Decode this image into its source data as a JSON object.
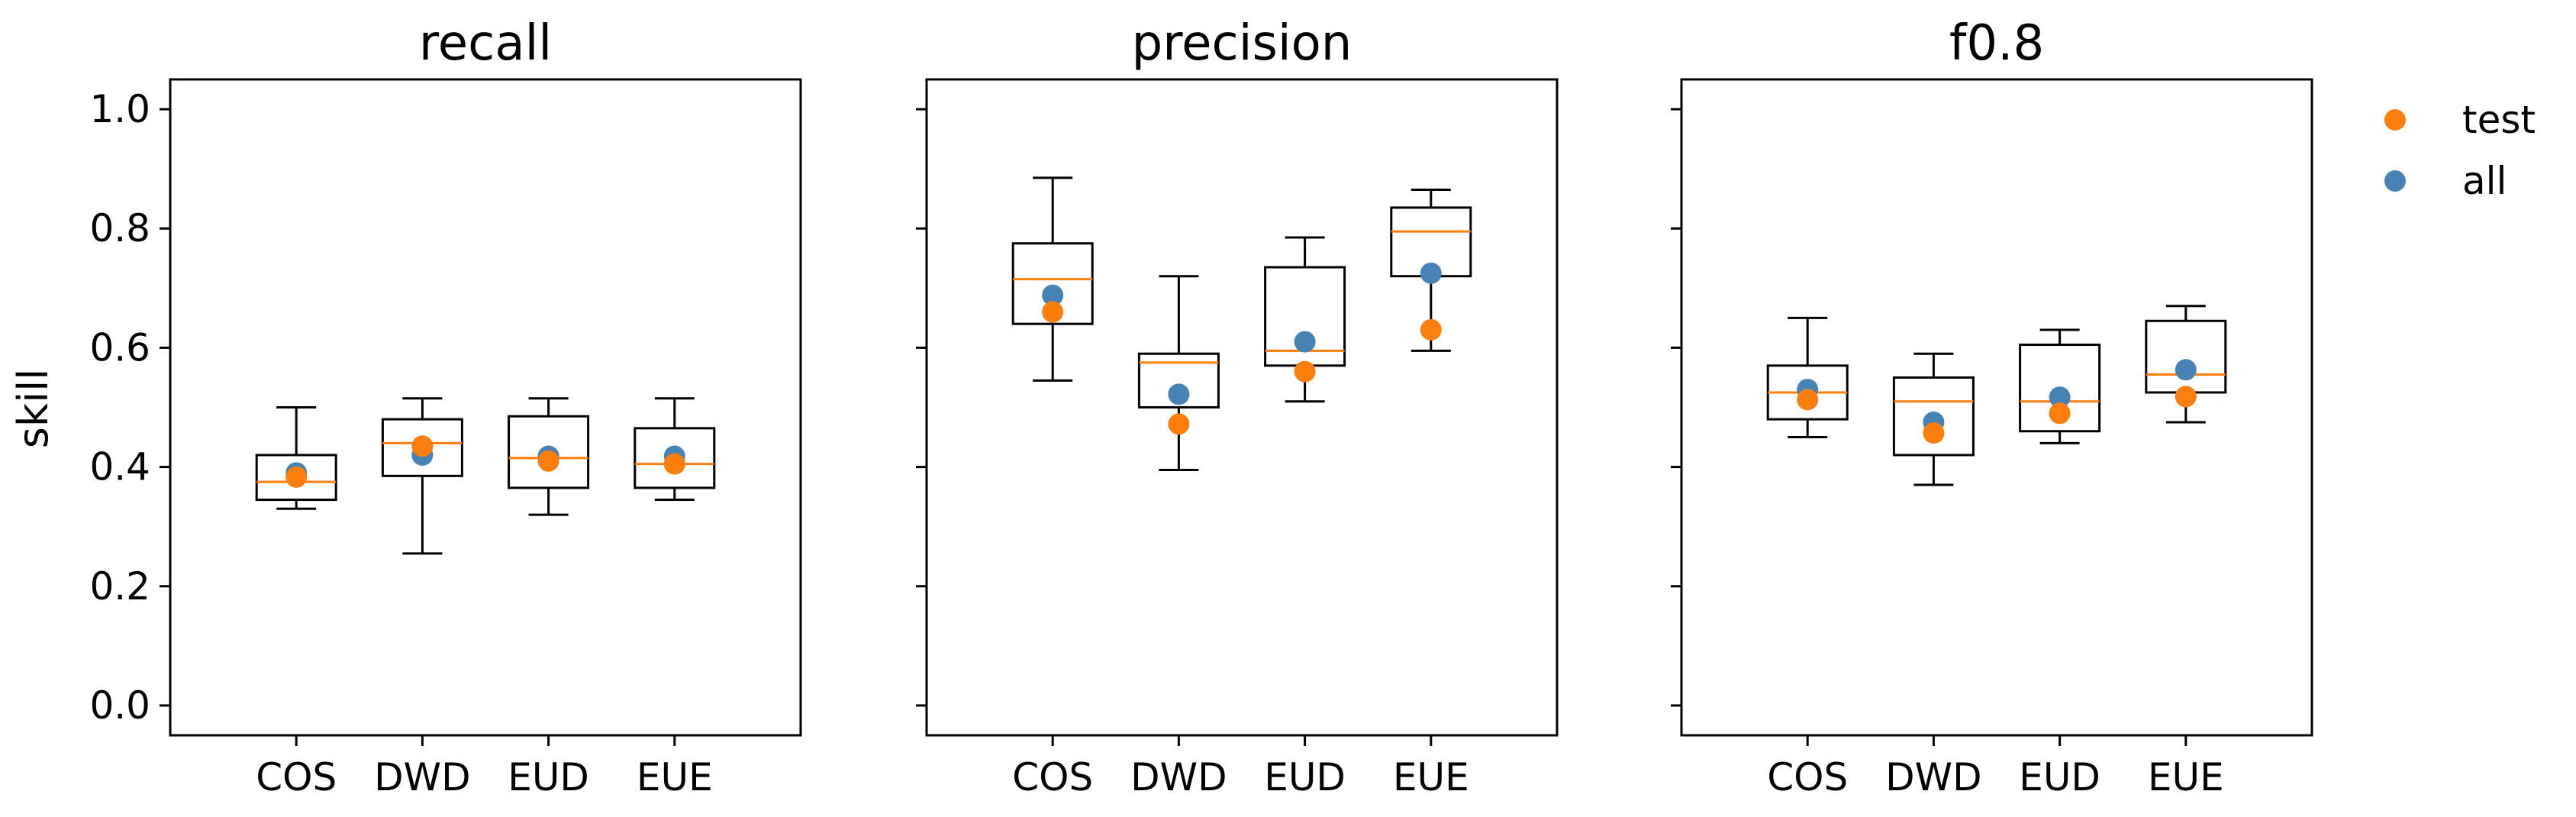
{
  "chart_data": {
    "type": "box",
    "ylabel": "skill",
    "ylim": [
      -0.05,
      1.05
    ],
    "yticks": [
      0.0,
      0.2,
      0.4,
      0.6,
      0.8,
      1.0
    ],
    "ytick_labels": [
      "0.0",
      "0.2",
      "0.4",
      "0.6",
      "0.8",
      "1.0"
    ],
    "categories": [
      "COS",
      "DWD",
      "EUD",
      "EUE"
    ],
    "legend": {
      "position": "top-right",
      "entries": [
        {
          "label": "test",
          "color": "#ff7f0e"
        },
        {
          "label": "all",
          "color": "#4682b4"
        }
      ]
    },
    "colors": {
      "box": "#000000",
      "median": "#ff7f0e",
      "test": "#ff7f0e",
      "all": "#4682b4"
    },
    "panels": [
      {
        "title": "recall",
        "boxes": [
          {
            "category": "COS",
            "whisker_low": 0.33,
            "q1": 0.345,
            "median": 0.375,
            "q3": 0.42,
            "whisker_high": 0.5,
            "all": 0.39,
            "test": 0.383
          },
          {
            "category": "DWD",
            "whisker_low": 0.255,
            "q1": 0.385,
            "median": 0.44,
            "q3": 0.48,
            "whisker_high": 0.515,
            "all": 0.42,
            "test": 0.435
          },
          {
            "category": "EUD",
            "whisker_low": 0.32,
            "q1": 0.365,
            "median": 0.415,
            "q3": 0.485,
            "whisker_high": 0.515,
            "all": 0.418,
            "test": 0.41
          },
          {
            "category": "EUE",
            "whisker_low": 0.345,
            "q1": 0.365,
            "median": 0.405,
            "q3": 0.465,
            "whisker_high": 0.515,
            "all": 0.418,
            "test": 0.405
          }
        ]
      },
      {
        "title": "precision",
        "boxes": [
          {
            "category": "COS",
            "whisker_low": 0.545,
            "q1": 0.64,
            "median": 0.715,
            "q3": 0.775,
            "whisker_high": 0.885,
            "all": 0.688,
            "test": 0.66
          },
          {
            "category": "DWD",
            "whisker_low": 0.395,
            "q1": 0.5,
            "median": 0.575,
            "q3": 0.59,
            "whisker_high": 0.72,
            "all": 0.522,
            "test": 0.472
          },
          {
            "category": "EUD",
            "whisker_low": 0.51,
            "q1": 0.57,
            "median": 0.595,
            "q3": 0.735,
            "whisker_high": 0.785,
            "all": 0.61,
            "test": 0.56
          },
          {
            "category": "EUE",
            "whisker_low": 0.595,
            "q1": 0.72,
            "median": 0.795,
            "q3": 0.835,
            "whisker_high": 0.865,
            "all": 0.725,
            "test": 0.63
          }
        ]
      },
      {
        "title": "f0.8",
        "boxes": [
          {
            "category": "COS",
            "whisker_low": 0.45,
            "q1": 0.48,
            "median": 0.525,
            "q3": 0.57,
            "whisker_high": 0.65,
            "all": 0.53,
            "test": 0.513
          },
          {
            "category": "DWD",
            "whisker_low": 0.37,
            "q1": 0.42,
            "median": 0.51,
            "q3": 0.55,
            "whisker_high": 0.59,
            "all": 0.475,
            "test": 0.457
          },
          {
            "category": "EUD",
            "whisker_low": 0.44,
            "q1": 0.46,
            "median": 0.51,
            "q3": 0.605,
            "whisker_high": 0.63,
            "all": 0.517,
            "test": 0.49
          },
          {
            "category": "EUE",
            "whisker_low": 0.475,
            "q1": 0.525,
            "median": 0.555,
            "q3": 0.645,
            "whisker_high": 0.67,
            "all": 0.563,
            "test": 0.518
          }
        ]
      }
    ]
  }
}
